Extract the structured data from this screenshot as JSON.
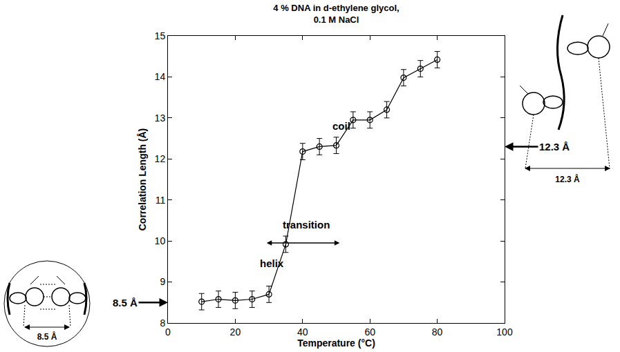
{
  "chart_data": {
    "type": "scatter",
    "title": [
      "4 % DNA in d-ethylene glycol,",
      "0.1 M NaCl"
    ],
    "x_label": "Temperature (°C)",
    "y_label": "Correlation Length (Å)",
    "x": [
      10,
      15,
      20,
      25,
      30,
      35,
      40,
      45,
      50,
      55,
      60,
      65,
      70,
      75,
      80
    ],
    "values": [
      8.52,
      8.58,
      8.55,
      8.58,
      8.7,
      9.92,
      12.18,
      12.3,
      12.33,
      12.95,
      12.95,
      13.2,
      13.98,
      14.2,
      14.42
    ],
    "errors": [
      0.2,
      0.2,
      0.2,
      0.2,
      0.2,
      0.2,
      0.2,
      0.2,
      0.2,
      0.2,
      0.2,
      0.2,
      0.2,
      0.2,
      0.2
    ],
    "color": "#000000",
    "marker": "open circle",
    "line_style": "solid",
    "xlim": [
      0,
      100
    ],
    "xticks": [
      0,
      20,
      40,
      60,
      80,
      100
    ],
    "ylim": [
      8,
      15
    ],
    "yticks": [
      8,
      9,
      10,
      11,
      12,
      13,
      14,
      15
    ],
    "grid": false,
    "annotations": [
      {
        "text": "helix",
        "x": 31,
        "y": 9.45
      },
      {
        "text": "coil",
        "x": 51.5,
        "y": 12.8
      },
      {
        "text": "transition",
        "x": 41,
        "y": 10.4,
        "arrow_from": 29,
        "arrow_to": 51,
        "arrow_y": 9.95
      }
    ],
    "axis_markers": [
      {
        "text": "8.5 Å",
        "y": 8.5,
        "side": "left"
      },
      {
        "text": "12.3 Å",
        "y": 12.3,
        "side": "right"
      }
    ]
  },
  "diagrams": {
    "helix_sketch": {
      "label": "8.5 Å"
    },
    "coil_sketch": {
      "label": "12.3 Å"
    }
  }
}
